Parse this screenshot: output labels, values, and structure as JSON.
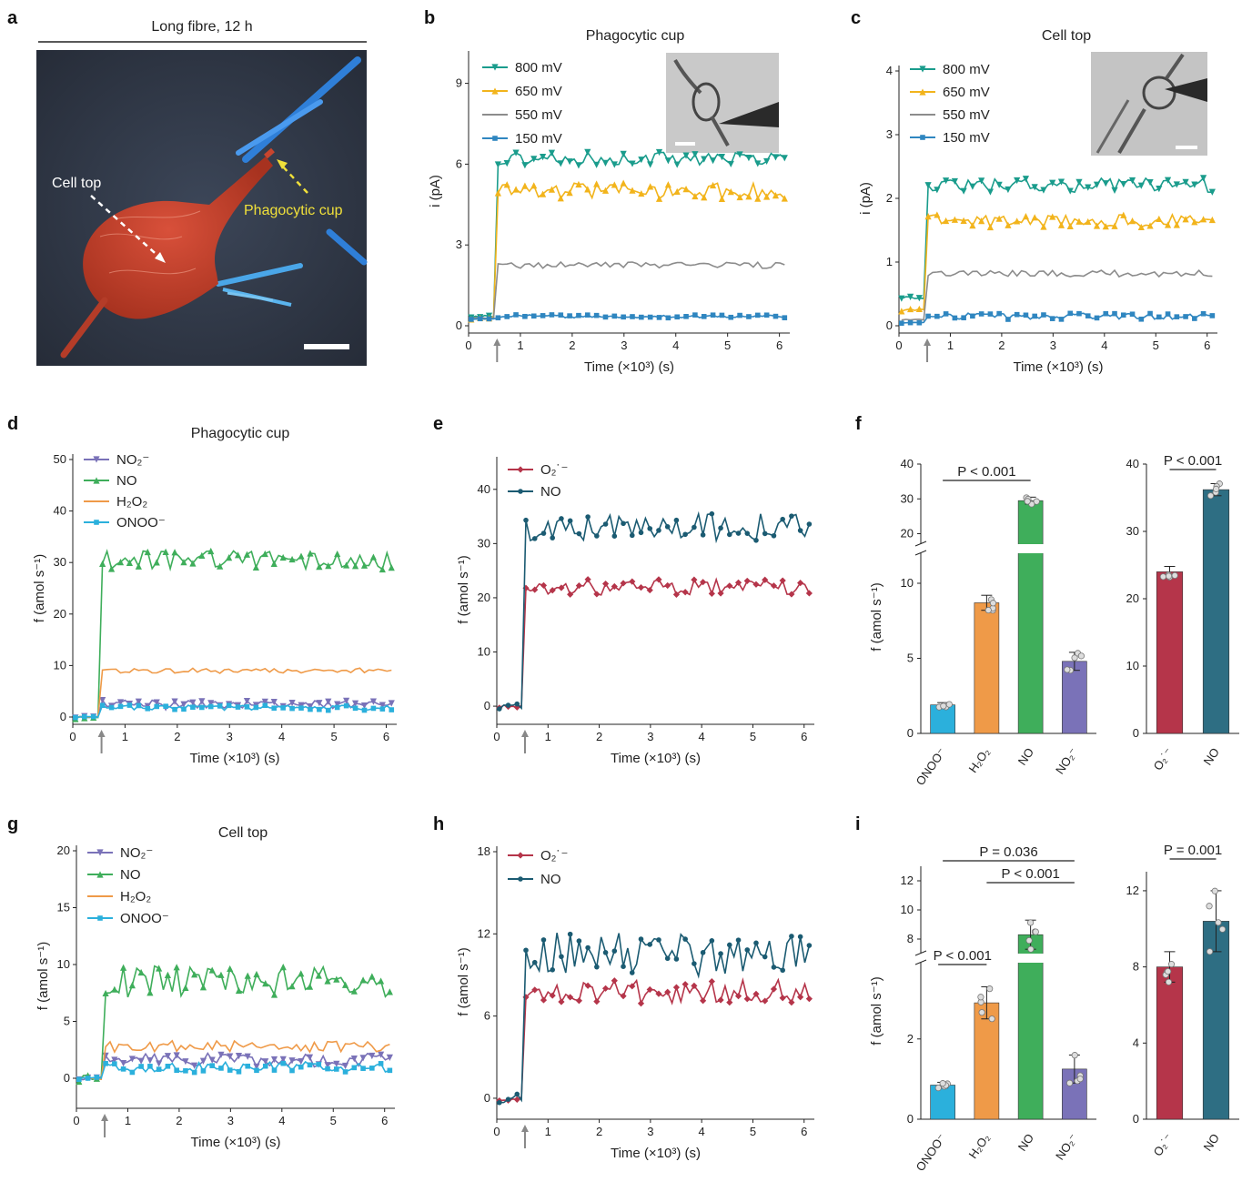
{
  "panels": {
    "a": {
      "label": "a",
      "title": "Long fibre, 12 h",
      "cell_top": "Cell top",
      "phagocytic_cup": "Phagocytic cup"
    },
    "b": {
      "label": "b"
    },
    "c": {
      "label": "c"
    },
    "d": {
      "label": "d"
    },
    "e": {
      "label": "e"
    },
    "f": {
      "label": "f"
    },
    "g": {
      "label": "g"
    },
    "h": {
      "label": "h"
    },
    "i": {
      "label": "i"
    }
  },
  "colors": {
    "v800": "#1a9c8c",
    "v650": "#f2b41c",
    "v550": "#8c8c8c",
    "v150": "#2f86c0",
    "no2": "#7a72b8",
    "no_green": "#3fae5b",
    "h2o2": "#ef9a48",
    "onoo": "#2bb0dc",
    "o2": "#b5354a",
    "no_teal": "#1b5b72",
    "bar_no_teal": "#2e6e83"
  },
  "chart_data": [
    {
      "id": "b",
      "type": "line",
      "title": "Phagocytic cup",
      "xlabel": "Time (×10³) (s)",
      "ylabel": "i (pA)",
      "xlim": [
        0,
        6.2
      ],
      "ylim": [
        0,
        10
      ],
      "xticks": [
        "0",
        "1",
        "2",
        "3",
        "4",
        "5",
        "6"
      ],
      "yticks": [
        "0",
        "3",
        "6",
        "9"
      ],
      "stim_x": 0.55,
      "series": [
        {
          "name": "800 mV",
          "color": "#1a9c8c",
          "marker": "tri-down",
          "pre": 0.35,
          "level": 6.2,
          "amp": 0.25
        },
        {
          "name": "650 mV",
          "color": "#f2b41c",
          "marker": "tri-up",
          "pre": 0.3,
          "level": 5.0,
          "amp": 0.3
        },
        {
          "name": "550 mV",
          "color": "#8c8c8c",
          "marker": "none",
          "pre": 0.3,
          "level": 2.25,
          "amp": 0.12
        },
        {
          "name": "150 mV",
          "color": "#2f86c0",
          "marker": "square",
          "pre": 0.25,
          "level": 0.35,
          "amp": 0.06
        }
      ]
    },
    {
      "id": "c",
      "type": "line",
      "title": "Cell top",
      "xlabel": "Time (×10³) (s)",
      "ylabel": "i (pA)",
      "xlim": [
        0,
        6.2
      ],
      "ylim": [
        0,
        4
      ],
      "xticks": [
        "0",
        "1",
        "2",
        "3",
        "4",
        "5",
        "6"
      ],
      "yticks": [
        "0",
        "1",
        "2",
        "3",
        "4"
      ],
      "stim_x": 0.55,
      "series": [
        {
          "name": "800 mV",
          "color": "#1a9c8c",
          "marker": "tri-down",
          "pre": 0.45,
          "level": 2.2,
          "amp": 0.12
        },
        {
          "name": "650 mV",
          "color": "#f2b41c",
          "marker": "tri-up",
          "pre": 0.25,
          "level": 1.65,
          "amp": 0.1
        },
        {
          "name": "550 mV",
          "color": "#8c8c8c",
          "marker": "none",
          "pre": 0.1,
          "level": 0.82,
          "amp": 0.05
        },
        {
          "name": "150 mV",
          "color": "#2f86c0",
          "marker": "square",
          "pre": 0.05,
          "level": 0.15,
          "amp": 0.05
        }
      ]
    },
    {
      "id": "d",
      "type": "line",
      "title": "Phagocytic cup",
      "xlabel": "Time (×10³) (s)",
      "ylabel": "f (amol s⁻¹)",
      "xlim": [
        0,
        6.2
      ],
      "ylim": [
        0,
        50
      ],
      "xticks": [
        "0",
        "1",
        "2",
        "3",
        "4",
        "5",
        "6"
      ],
      "yticks": [
        "0",
        "10",
        "20",
        "30",
        "40",
        "50"
      ],
      "stim_x": 0.55,
      "series": [
        {
          "name": "NO₂⁻",
          "color": "#7a72b8",
          "marker": "tri-down",
          "pre": 0,
          "level": 2.5,
          "amp": 0.8
        },
        {
          "name": "NO",
          "color": "#3fae5b",
          "marker": "tri-up",
          "pre": 0,
          "level": 30.5,
          "amp": 1.8
        },
        {
          "name": "H₂O₂",
          "color": "#ef9a48",
          "marker": "none",
          "pre": 0,
          "level": 9.0,
          "amp": 0.5
        },
        {
          "name": "ONOO⁻",
          "color": "#2bb0dc",
          "marker": "square",
          "pre": 0,
          "level": 1.8,
          "amp": 0.5
        }
      ]
    },
    {
      "id": "e",
      "type": "line",
      "title": "",
      "xlabel": "Time (×10³) (s)",
      "ylabel": "f (amol s⁻¹)",
      "xlim": [
        0,
        6.2
      ],
      "ylim": [
        -2,
        45
      ],
      "xticks": [
        "0",
        "1",
        "2",
        "3",
        "4",
        "5",
        "6"
      ],
      "yticks": [
        "0",
        "10",
        "20",
        "30",
        "40"
      ],
      "stim_x": 0.55,
      "series": [
        {
          "name": "O₂˙⁻",
          "color": "#b5354a",
          "marker": "diamond",
          "pre": 0,
          "level": 22,
          "amp": 1.5
        },
        {
          "name": "NO",
          "color": "#1b5b72",
          "marker": "dot",
          "pre": 0,
          "level": 33,
          "amp": 2.5
        }
      ]
    },
    {
      "id": "f1",
      "type": "bar",
      "ylabel": "f (amol s⁻¹)",
      "categories": [
        "ONOO⁻",
        "H₂O₂",
        "NO",
        "NO₂⁻"
      ],
      "values": [
        1.9,
        8.7,
        29.5,
        4.8
      ],
      "errors": [
        0.15,
        0.5,
        1.0,
        0.6
      ],
      "colors": [
        "#2bb0dc",
        "#ef9a48",
        "#3fae5b",
        "#7a72b8"
      ],
      "yticks_low": [
        "0",
        "5",
        "10"
      ],
      "yticks_high": [
        "20",
        "30",
        "40"
      ],
      "break": [
        12,
        17
      ],
      "ylim": [
        0,
        40
      ],
      "significance": [
        {
          "label": "P < 0.001",
          "from": 0,
          "to": 2
        }
      ]
    },
    {
      "id": "f2",
      "type": "bar",
      "categories": [
        "O₂˙⁻",
        "NO"
      ],
      "values": [
        24.0,
        36.2
      ],
      "errors": [
        0.8,
        0.9
      ],
      "colors": [
        "#b5354a",
        "#2e6e83"
      ],
      "yticks": [
        "0",
        "10",
        "20",
        "30",
        "40"
      ],
      "ylim": [
        0,
        40
      ],
      "significance": [
        {
          "label": "P < 0.001",
          "from": 0,
          "to": 1
        }
      ]
    },
    {
      "id": "g",
      "type": "line",
      "title": "Cell top",
      "xlabel": "Time (×10³) (s)",
      "ylabel": "f (amol s⁻¹)",
      "xlim": [
        0,
        6.2
      ],
      "ylim": [
        -2,
        20
      ],
      "xticks": [
        "0",
        "1",
        "2",
        "3",
        "4",
        "5",
        "6"
      ],
      "yticks": [
        "0",
        "5",
        "10",
        "15",
        "20"
      ],
      "stim_x": 0.55,
      "series": [
        {
          "name": "NO₂⁻",
          "color": "#7a72b8",
          "marker": "tri-down",
          "pre": 0,
          "level": 1.6,
          "amp": 0.6
        },
        {
          "name": "NO",
          "color": "#3fae5b",
          "marker": "tri-up",
          "pre": 0,
          "level": 8.5,
          "amp": 1.4
        },
        {
          "name": "H₂O₂",
          "color": "#ef9a48",
          "marker": "none",
          "pre": 0,
          "level": 2.8,
          "amp": 0.5
        },
        {
          "name": "ONOO⁻",
          "color": "#2bb0dc",
          "marker": "square",
          "pre": 0,
          "level": 1.0,
          "amp": 0.5
        }
      ]
    },
    {
      "id": "h",
      "type": "line",
      "title": "",
      "xlabel": "Time (×10³) (s)",
      "ylabel": "f (amol s⁻¹)",
      "xlim": [
        0,
        6.2
      ],
      "ylim": [
        -1,
        18
      ],
      "xticks": [
        "0",
        "1",
        "2",
        "3",
        "4",
        "5",
        "6"
      ],
      "yticks": [
        "0",
        "6",
        "12",
        "18"
      ],
      "stim_x": 0.55,
      "series": [
        {
          "name": "O₂˙⁻",
          "color": "#b5354a",
          "marker": "diamond",
          "pre": 0,
          "level": 7.8,
          "amp": 0.9
        },
        {
          "name": "NO",
          "color": "#1b5b72",
          "marker": "dot",
          "pre": 0,
          "level": 10.5,
          "amp": 1.6
        }
      ]
    },
    {
      "id": "i1",
      "type": "bar",
      "ylabel": "f (amol s⁻¹)",
      "categories": [
        "ONOO⁻",
        "H₂O₂",
        "NO",
        "NO₂⁻"
      ],
      "values": [
        0.85,
        2.9,
        8.3,
        1.25
      ],
      "errors": [
        0.07,
        0.4,
        1.0,
        0.35
      ],
      "colors": [
        "#2bb0dc",
        "#ef9a48",
        "#3fae5b",
        "#7a72b8"
      ],
      "yticks_low": [
        "0",
        "2"
      ],
      "yticks_high": [
        "8",
        "10",
        "12"
      ],
      "break": [
        3.9,
        7.0
      ],
      "ylim": [
        0,
        13
      ],
      "significance": [
        {
          "label": "P = 0.036",
          "from": 0,
          "to": 3
        },
        {
          "label": "P < 0.001",
          "from": 1,
          "to": 3
        },
        {
          "label": "P < 0.001",
          "from": 0,
          "to": 1
        }
      ]
    },
    {
      "id": "i2",
      "type": "bar",
      "categories": [
        "O₂˙⁻",
        "NO"
      ],
      "values": [
        8.0,
        10.4
      ],
      "errors": [
        0.8,
        1.6
      ],
      "colors": [
        "#b5354a",
        "#2e6e83"
      ],
      "yticks": [
        "0",
        "4",
        "8",
        "12"
      ],
      "ylim": [
        0,
        13
      ],
      "significance": [
        {
          "label": "P = 0.001",
          "from": 0,
          "to": 1
        }
      ]
    }
  ]
}
